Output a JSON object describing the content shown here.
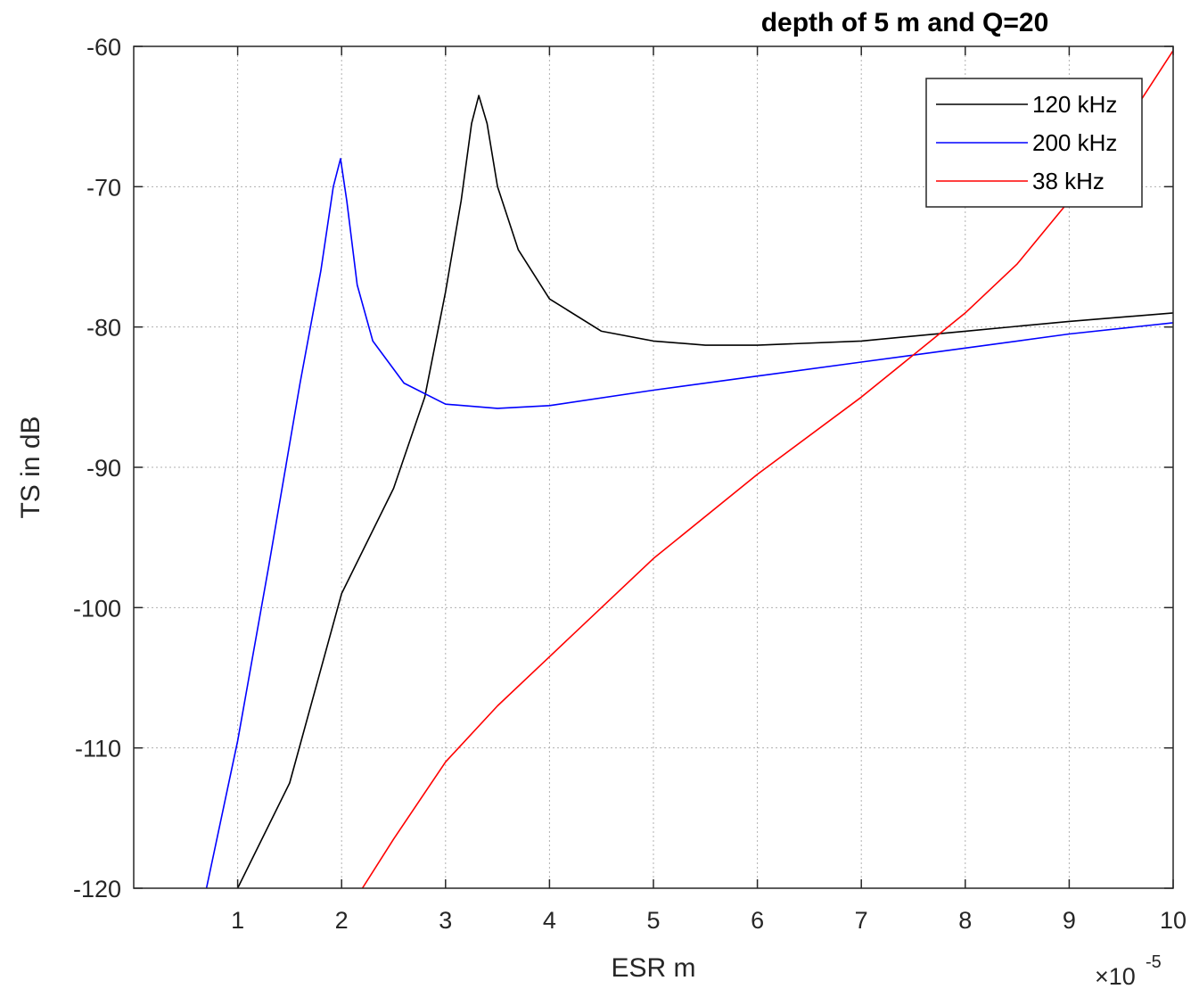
{
  "chart_data": {
    "type": "line",
    "title": "depth of 5 m and Q=20",
    "xlabel": "ESR m",
    "ylabel": "TS in dB",
    "x_multiplier_base": "×10",
    "x_multiplier_exp": "-5",
    "xlim": [
      0,
      10
    ],
    "ylim": [
      -120,
      -60
    ],
    "xticks": [
      1,
      2,
      3,
      4,
      5,
      6,
      7,
      8,
      9,
      10
    ],
    "yticks": [
      -60,
      -70,
      -80,
      -90,
      -100,
      -110,
      -120
    ],
    "grid": true,
    "legend_position": "top-right",
    "series": [
      {
        "name": "120 kHz",
        "color": "#000000",
        "points": [
          [
            1.0,
            -120
          ],
          [
            1.5,
            -112.5
          ],
          [
            2.0,
            -99
          ],
          [
            2.5,
            -91.5
          ],
          [
            2.8,
            -85
          ],
          [
            3.0,
            -77.5
          ],
          [
            3.15,
            -71
          ],
          [
            3.25,
            -65.5
          ],
          [
            3.32,
            -63.5
          ],
          [
            3.4,
            -65.5
          ],
          [
            3.5,
            -70
          ],
          [
            3.7,
            -74.5
          ],
          [
            4.0,
            -78
          ],
          [
            4.5,
            -80.3
          ],
          [
            5.0,
            -81
          ],
          [
            5.5,
            -81.3
          ],
          [
            6.0,
            -81.3
          ],
          [
            7.0,
            -81
          ],
          [
            8.0,
            -80.3
          ],
          [
            9.0,
            -79.6
          ],
          [
            10.0,
            -79
          ]
        ]
      },
      {
        "name": "200 kHz",
        "color": "#0000ff",
        "points": [
          [
            0.7,
            -120
          ],
          [
            1.0,
            -109.5
          ],
          [
            1.3,
            -97
          ],
          [
            1.6,
            -84
          ],
          [
            1.8,
            -76
          ],
          [
            1.92,
            -70
          ],
          [
            1.99,
            -68
          ],
          [
            2.05,
            -71
          ],
          [
            2.15,
            -77
          ],
          [
            2.3,
            -81
          ],
          [
            2.6,
            -84
          ],
          [
            3.0,
            -85.5
          ],
          [
            3.5,
            -85.8
          ],
          [
            4.0,
            -85.6
          ],
          [
            5.0,
            -84.5
          ],
          [
            6.0,
            -83.5
          ],
          [
            7.0,
            -82.5
          ],
          [
            8.0,
            -81.5
          ],
          [
            9.0,
            -80.5
          ],
          [
            10.0,
            -79.7
          ]
        ]
      },
      {
        "name": "38 kHz",
        "color": "#ff0000",
        "points": [
          [
            2.2,
            -120
          ],
          [
            2.5,
            -116.5
          ],
          [
            3.0,
            -111
          ],
          [
            3.5,
            -107
          ],
          [
            4.0,
            -103.5
          ],
          [
            5.0,
            -96.5
          ],
          [
            6.0,
            -90.5
          ],
          [
            7.0,
            -85
          ],
          [
            8.0,
            -79
          ],
          [
            8.5,
            -75.5
          ],
          [
            9.0,
            -71
          ],
          [
            9.5,
            -66
          ],
          [
            10.0,
            -60.3
          ]
        ]
      }
    ]
  }
}
